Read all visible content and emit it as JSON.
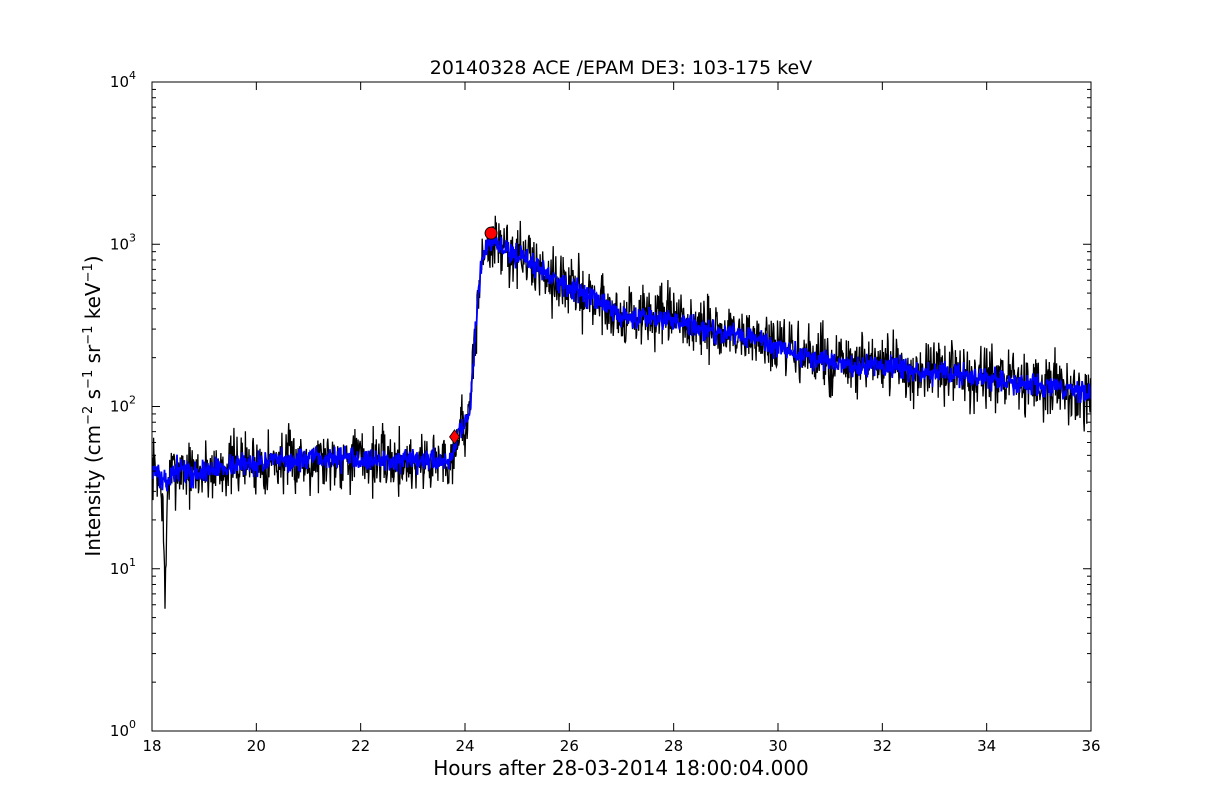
{
  "chart_data": {
    "type": "line",
    "title": "20140328 ACE /EPAM DE3: 103-175 keV",
    "xlabel": "Hours after 28-03-2014 18:00:04.000",
    "ylabel_main": "Intensity (cm",
    "ylabel_parts": [
      {
        "t": "Intensity (cm",
        "sup": false
      },
      {
        "t": "−2",
        "sup": true
      },
      {
        "t": " s",
        "sup": false
      },
      {
        "t": "−1",
        "sup": true
      },
      {
        "t": " sr",
        "sup": false
      },
      {
        "t": "−1",
        "sup": true
      },
      {
        "t": " keV",
        "sup": false
      },
      {
        "t": "−1",
        "sup": true
      },
      {
        "t": ")",
        "sup": false
      }
    ],
    "xlim": [
      18,
      36
    ],
    "ylim": [
      1,
      10000
    ],
    "yscale": "log",
    "grid": false,
    "xticks": [
      18,
      20,
      22,
      24,
      26,
      28,
      30,
      32,
      34,
      36
    ],
    "xtick_labels": [
      "18",
      "20",
      "22",
      "24",
      "26",
      "28",
      "30",
      "32",
      "34",
      "36"
    ],
    "yticks": [
      {
        "value": 1,
        "base": "10",
        "exp": "0"
      },
      {
        "value": 10,
        "base": "10",
        "exp": "1"
      },
      {
        "value": 100,
        "base": "10",
        "exp": "2"
      },
      {
        "value": 1000,
        "base": "10",
        "exp": "3"
      },
      {
        "value": 10000,
        "base": "10",
        "exp": "4"
      }
    ],
    "series": [
      {
        "color": "#000000",
        "x": [
          18.0,
          18.1,
          18.2,
          18.25,
          18.3,
          18.5,
          18.8,
          19.0,
          19.3,
          19.6,
          20.0,
          20.5,
          21.0,
          21.4,
          21.8,
          22.2,
          22.6,
          23.0,
          23.4,
          23.7,
          23.75,
          23.8,
          23.9,
          24.0,
          24.1,
          24.2,
          24.3,
          24.4,
          24.5,
          24.7,
          25.0,
          25.3,
          25.6,
          26.0,
          26.4,
          26.7,
          27.0,
          27.5,
          28.0,
          28.5,
          29.0,
          29.5,
          30.0,
          30.5,
          31.0,
          31.5,
          32.0,
          32.5,
          33.0,
          33.5,
          34.0,
          34.5,
          35.0,
          35.5,
          36.0
        ],
        "y": [
          42,
          40,
          28,
          6,
          35,
          42,
          38,
          40,
          42,
          44,
          45,
          46,
          47,
          48,
          49,
          47,
          46,
          45,
          47,
          46,
          48,
          60,
          75,
          76,
          95,
          280,
          700,
          980,
          1010,
          950,
          860,
          760,
          660,
          540,
          480,
          420,
          350,
          360,
          345,
          300,
          285,
          265,
          230,
          205,
          190,
          175,
          180,
          165,
          160,
          155,
          150,
          140,
          135,
          130,
          122
        ],
        "noise": 0.55,
        "seed": 7
      },
      {
        "color": "#0000ff",
        "x": [
          18.0,
          18.1,
          18.2,
          18.25,
          18.3,
          18.5,
          18.8,
          19.0,
          19.3,
          19.6,
          20.0,
          20.5,
          21.0,
          21.4,
          21.8,
          22.2,
          22.6,
          23.0,
          23.4,
          23.7,
          23.75,
          23.8,
          23.9,
          24.0,
          24.1,
          24.2,
          24.3,
          24.4,
          24.5,
          24.7,
          25.0,
          25.3,
          25.6,
          26.0,
          26.4,
          26.7,
          27.0,
          27.5,
          28.0,
          28.5,
          29.0,
          29.5,
          30.0,
          30.5,
          31.0,
          31.5,
          32.0,
          32.5,
          33.0,
          33.5,
          34.0,
          34.5,
          35.0,
          35.5,
          36.0
        ],
        "y": [
          42,
          40,
          34,
          33,
          35,
          42,
          38,
          40,
          42,
          44,
          45,
          46,
          47,
          48,
          49,
          47,
          46,
          45,
          47,
          46,
          48,
          60,
          75,
          76,
          95,
          280,
          700,
          980,
          1010,
          950,
          860,
          760,
          660,
          540,
          480,
          420,
          350,
          360,
          345,
          300,
          285,
          265,
          230,
          205,
          190,
          175,
          180,
          165,
          160,
          155,
          150,
          140,
          135,
          130,
          122
        ],
        "noise": 0.2,
        "seed": 13
      }
    ],
    "markers": [
      {
        "type": "circle",
        "x": 24.5,
        "y": 1170,
        "color": "#ff0000"
      },
      {
        "type": "diamond",
        "x": 23.8,
        "y": 65,
        "color": "#ff0000"
      }
    ]
  }
}
